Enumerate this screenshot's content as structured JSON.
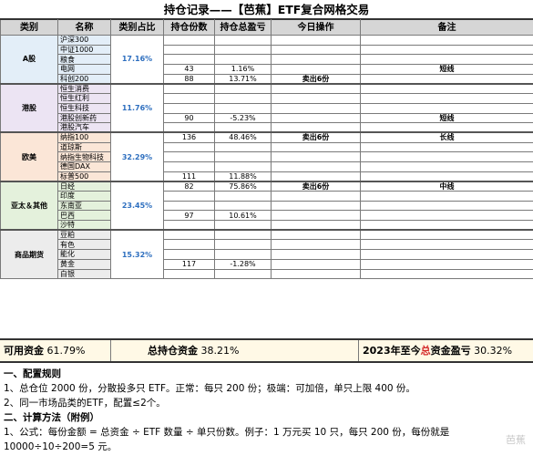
{
  "title": "持仓记录——【芭蕉】ETF复合网格交易",
  "headers": [
    "类别",
    "名称",
    "类别占比",
    "持仓份数",
    "持仓总盈亏",
    "今日操作",
    "备注"
  ],
  "groups": [
    {
      "region": "A股",
      "pct": "17.16%",
      "rows": [
        {
          "name": "沪深300",
          "shares": "",
          "pnl": "",
          "op": "",
          "note": ""
        },
        {
          "name": "中证1000",
          "shares": "",
          "pnl": "",
          "op": "",
          "note": ""
        },
        {
          "name": "粮食",
          "shares": "",
          "pnl": "",
          "op": "",
          "note": ""
        },
        {
          "name": "电网",
          "shares": "43",
          "pnl": "1.16%",
          "op": "",
          "note": "短线"
        },
        {
          "name": "科创200",
          "shares": "88",
          "pnl": "13.71%",
          "op": "卖出6份",
          "note": ""
        }
      ]
    },
    {
      "region": "港股",
      "pct": "11.76%",
      "rows": [
        {
          "name": "恒生消费",
          "shares": "",
          "pnl": "",
          "op": "",
          "note": ""
        },
        {
          "name": "恒生红利",
          "shares": "",
          "pnl": "",
          "op": "",
          "note": ""
        },
        {
          "name": "恒生科技",
          "shares": "",
          "pnl": "",
          "op": "",
          "note": ""
        },
        {
          "name": "港股创新药",
          "shares": "90",
          "pnl": "-5.23%",
          "op": "",
          "note": "短线"
        },
        {
          "name": "港股汽车",
          "shares": "",
          "pnl": "",
          "op": "",
          "note": ""
        }
      ]
    },
    {
      "region": "欧美",
      "pct": "32.29%",
      "rows": [
        {
          "name": "纳指100",
          "shares": "136",
          "pnl": "48.46%",
          "op": "卖出6份",
          "note": "长线"
        },
        {
          "name": "道琼斯",
          "shares": "",
          "pnl": "",
          "op": "",
          "note": ""
        },
        {
          "name": "纳指生物科技",
          "shares": "",
          "pnl": "",
          "op": "",
          "note": ""
        },
        {
          "name": "德国DAX",
          "shares": "",
          "pnl": "",
          "op": "",
          "note": ""
        },
        {
          "name": "标普500",
          "shares": "111",
          "pnl": "11.88%",
          "op": "",
          "note": ""
        }
      ]
    },
    {
      "region": "亚太＆其他",
      "pct": "23.45%",
      "rows": [
        {
          "name": "日经",
          "shares": "82",
          "pnl": "75.86%",
          "op": "卖出6份",
          "note": "中线"
        },
        {
          "name": "印度",
          "shares": "",
          "pnl": "",
          "op": "",
          "note": ""
        },
        {
          "name": "东南亚",
          "shares": "",
          "pnl": "",
          "op": "",
          "note": ""
        },
        {
          "name": "巴西",
          "shares": "97",
          "pnl": "10.61%",
          "op": "",
          "note": ""
        },
        {
          "name": "沙特",
          "shares": "",
          "pnl": "",
          "op": "",
          "note": ""
        }
      ]
    },
    {
      "region": "商品期货",
      "pct": "15.32%",
      "rows": [
        {
          "name": "豆粕",
          "shares": "",
          "pnl": "",
          "op": "",
          "note": ""
        },
        {
          "name": "有色",
          "shares": "",
          "pnl": "",
          "op": "",
          "note": ""
        },
        {
          "name": "能化",
          "shares": "",
          "pnl": "",
          "op": "",
          "note": ""
        },
        {
          "name": "黄金",
          "shares": "117",
          "pnl": "-1.28%",
          "op": "",
          "note": ""
        },
        {
          "name": "白银",
          "shares": "",
          "pnl": "",
          "op": "",
          "note": ""
        }
      ]
    }
  ],
  "summary": {
    "cash_label": "可用资金",
    "cash_value": "61.79%",
    "position_label": "总持仓资金",
    "position_value": "38.21%",
    "profit_label_a": "2023年至今",
    "profit_label_red": "总",
    "profit_label_b": "资金盈亏",
    "profit_value": "30.32%"
  },
  "notes": {
    "h1": "一、配置规则",
    "l1": "1、总仓位 2000 份，分散投多只 ETF。正常：每只 200 份；极端：可加倍，单只上限 400 份。",
    "l2": "2、同一市场品类的ETF，配置≤2个。",
    "h2": "二、计算方法（附例）",
    "l3": "1、公式：每份金额 = 总资金 ÷ ETF 数量 ÷ 单只份数。例子：1 万元买 10 只，每只 200 份，每份就是",
    "l4": "10000÷10÷200=5 元。",
    "watermark": "芭蕉"
  },
  "colors": {
    "a_share": "#e3eef8",
    "hk": "#ece4f3",
    "us_eu": "#fbe6d7",
    "apac": "#e4f1dc",
    "commodity": "#ececec",
    "pct_text": "#2e6fbf",
    "highlight_red": "#d42a2a"
  }
}
